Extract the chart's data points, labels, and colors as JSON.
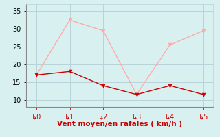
{
  "x": [
    0,
    1,
    2,
    3,
    4,
    5
  ],
  "y_moyen": [
    17,
    18,
    14,
    11.5,
    14,
    11.5
  ],
  "y_rafales": [
    17,
    32.5,
    29.5,
    11.5,
    25.5,
    29.5
  ],
  "color_moyen": "#cc0000",
  "color_rafales": "#ffaaaa",
  "xlabel": "Vent moyen/en rafales ( km/h )",
  "xlim": [
    -0.3,
    5.3
  ],
  "ylim": [
    8,
    37
  ],
  "yticks": [
    10,
    15,
    20,
    25,
    30,
    35
  ],
  "xticks": [
    0,
    1,
    2,
    3,
    4,
    5
  ],
  "background_color": "#d8f0f0",
  "grid_color": "#b8d4d8",
  "xlabel_color": "#cc0000",
  "xlabel_fontsize": 7.5,
  "tick_fontsize": 7,
  "ytick_fontsize": 7
}
